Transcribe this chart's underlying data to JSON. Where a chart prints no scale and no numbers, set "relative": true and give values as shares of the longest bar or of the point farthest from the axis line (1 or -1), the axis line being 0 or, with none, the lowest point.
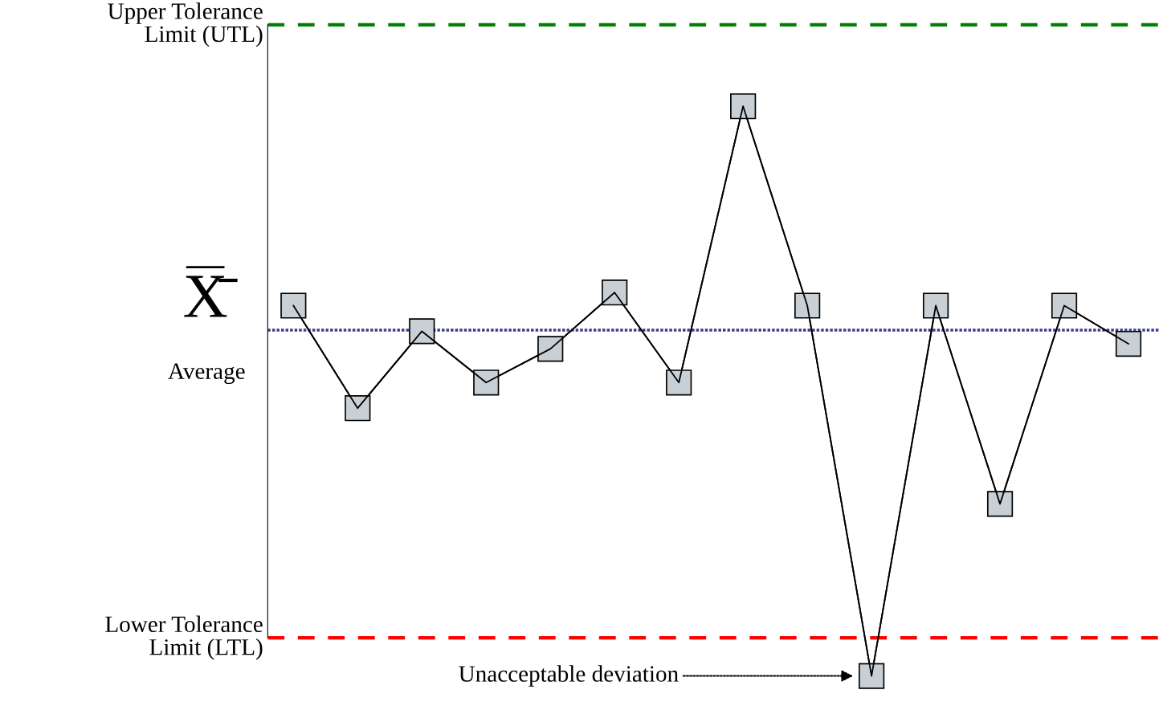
{
  "chart_data": {
    "type": "line",
    "relative": true,
    "categories": [
      null,
      null,
      null,
      null,
      null,
      null,
      null,
      null,
      null,
      null,
      null,
      null,
      null,
      null
    ],
    "series": [
      {
        "color": "#000000",
        "values": [
          0.65,
          0.47,
          0.605,
          0.515,
          0.574,
          0.673,
          0.515,
          1,
          0.65,
          0,
          0.65,
          0.302,
          0.65,
          0.583
        ]
      }
    ],
    "marker": "square",
    "line_style": "solid",
    "legend": false,
    "ref_lines": [
      {
        "axis": "y",
        "value": 1.143,
        "label": "Upper Tolerance\nLimit (UTL)",
        "color": "#008000",
        "line_style": "dashed"
      },
      {
        "axis": "y",
        "value": 0.607,
        "label": "X̄\nAverage",
        "color": "#3c3c8c",
        "line_style": "dotted"
      },
      {
        "axis": "y",
        "value": 0.067,
        "label": "Lower Tolerance\nLimit (LTL)",
        "color": "#ff0000",
        "line_style": "dashed"
      }
    ],
    "annotations": [
      "Unacceptable deviation"
    ]
  }
}
